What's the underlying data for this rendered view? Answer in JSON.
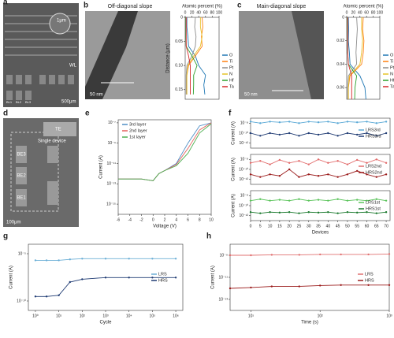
{
  "panels": {
    "a": {
      "label": "a",
      "texts": [
        "1μm",
        "WL",
        "BL1",
        "BL2",
        "BL3",
        "500μm"
      ]
    },
    "b": {
      "label": "b",
      "title": "Off-diagonal slope",
      "scale": "50 nm"
    },
    "c": {
      "label": "c",
      "title": "Main-diagonal slope",
      "scale": "50 nm"
    },
    "d": {
      "label": "d",
      "texts": [
        "TE",
        "Single device",
        "BE3",
        "BE2",
        "BE1",
        "100μm"
      ]
    },
    "e": {
      "label": "e"
    },
    "f": {
      "label": "f"
    },
    "g": {
      "label": "g"
    },
    "h": {
      "label": "h"
    }
  },
  "chart_data": [
    {
      "type": "line",
      "orientation": "vertical",
      "xlabel": "Atomic percent (%)",
      "ylabel": "Distance (μm)",
      "xlim": [
        0,
        100
      ],
      "xticks": [
        0,
        20,
        40,
        60,
        80,
        100
      ],
      "ylim": [
        0,
        0.17
      ],
      "y_inverted": true,
      "yticks": [
        0,
        0.05,
        {
          "value": 0.1,
          "label": "0.10"
        },
        0.15
      ],
      "legend": "right",
      "y": [
        0,
        0.02,
        0.04,
        0.06,
        0.08,
        0.1,
        0.12,
        0.14,
        0.16
      ],
      "series": [
        {
          "name": "O",
          "color": "#1f77b4",
          "values": [
            5,
            5,
            8,
            10,
            30,
            40,
            60,
            55,
            58
          ]
        },
        {
          "name": "Ti",
          "color": "#ff7f0e",
          "values": [
            50,
            52,
            48,
            50,
            30,
            10,
            5,
            4,
            5
          ]
        },
        {
          "name": "Pt",
          "color": "#8c8c8c",
          "values": [
            30,
            28,
            32,
            30,
            20,
            5,
            3,
            3,
            3
          ]
        },
        {
          "name": "N",
          "color": "#e6c229",
          "values": [
            45,
            45,
            50,
            45,
            25,
            8,
            5,
            5,
            5
          ]
        },
        {
          "name": "Hf",
          "color": "#2ca02c",
          "values": [
            2,
            2,
            2,
            3,
            20,
            35,
            25,
            25,
            24
          ]
        },
        {
          "name": "Ta",
          "color": "#d62728",
          "values": [
            3,
            3,
            3,
            3,
            10,
            15,
            15,
            15,
            15
          ]
        }
      ]
    },
    {
      "type": "line",
      "orientation": "vertical",
      "xlabel": "Atomic percent (%)",
      "ylabel": "",
      "xlim": [
        0,
        100
      ],
      "xticks": [
        0,
        20,
        40,
        60,
        80,
        100
      ],
      "ylim": [
        0,
        0.07
      ],
      "y_inverted": true,
      "yticks": [
        0,
        0.02,
        0.04,
        0.06
      ],
      "legend": "right",
      "y": [
        0,
        0.01,
        0.02,
        0.03,
        0.04,
        0.05,
        0.06,
        0.07
      ],
      "series": [
        {
          "name": "O",
          "color": "#1f77b4",
          "values": [
            5,
            6,
            5,
            8,
            10,
            40,
            55,
            58
          ]
        },
        {
          "name": "Ti",
          "color": "#ff7f0e",
          "values": [
            50,
            48,
            52,
            50,
            45,
            10,
            5,
            5
          ]
        },
        {
          "name": "Pt",
          "color": "#8c8c8c",
          "values": [
            30,
            32,
            30,
            28,
            30,
            5,
            3,
            3
          ]
        },
        {
          "name": "N",
          "color": "#e6c229",
          "values": [
            45,
            45,
            48,
            45,
            40,
            8,
            5,
            5
          ]
        },
        {
          "name": "Hf",
          "color": "#2ca02c",
          "values": [
            2,
            2,
            3,
            3,
            5,
            30,
            25,
            24
          ]
        },
        {
          "name": "Ta",
          "color": "#d62728",
          "values": [
            3,
            3,
            3,
            3,
            5,
            15,
            15,
            15
          ]
        }
      ]
    },
    {
      "type": "line",
      "xlabel": "Voltage (V)",
      "ylabel": "Current (A)",
      "xlim": [
        -6,
        10
      ],
      "xticks": [
        -6,
        -4,
        -2,
        0,
        2,
        4,
        6,
        8,
        10
      ],
      "ylog": true,
      "ylim": [
        1e-16,
        2e-07
      ],
      "yticks": [
        {
          "value": 1e-07,
          "label": "10⁻⁷"
        },
        {
          "value": 1e-09,
          "label": "10⁻⁹"
        },
        {
          "value": 1e-11,
          "label": "10⁻¹¹"
        },
        {
          "value": 1e-13,
          "label": "10⁻¹³"
        },
        {
          "value": 1e-15,
          "label": "10⁻¹⁵"
        }
      ],
      "legend": "top-left",
      "x": [
        -6,
        -4,
        -2,
        0,
        1,
        2,
        4,
        6,
        8,
        10
      ],
      "series": [
        {
          "name": "3rd layer",
          "color": "#4f8fc6",
          "values": [
            3e-13,
            3e-13,
            3e-13,
            2e-13,
            1e-12,
            2e-12,
            1e-11,
            1e-09,
            5e-08,
            1e-07
          ]
        },
        {
          "name": "2nd layer",
          "color": "#e4605c",
          "values": [
            3e-13,
            3e-13,
            3e-13,
            2e-13,
            1e-12,
            2e-12,
            8e-12,
            3e-10,
            2e-08,
            1e-07
          ]
        },
        {
          "name": "1st layer",
          "color": "#4caf50",
          "values": [
            3e-13,
            3e-13,
            3e-13,
            2e-13,
            1e-12,
            2e-12,
            6e-12,
            1e-10,
            1e-08,
            8e-08
          ]
        }
      ]
    },
    {
      "type": "line",
      "markers": true,
      "xlabel": "",
      "ylabel": "Current (A)",
      "xlim": [
        0,
        72
      ],
      "xticks": [],
      "ylog": true,
      "ylim": [
        1e-13,
        1e-07
      ],
      "yticks": [
        {
          "value": 1e-08,
          "label": "10⁻⁸"
        },
        {
          "value": 1e-10,
          "label": "10⁻¹⁰"
        },
        {
          "value": 1e-12,
          "label": "10⁻¹²"
        }
      ],
      "legend": "right",
      "x": [
        0,
        5,
        10,
        15,
        20,
        25,
        30,
        35,
        40,
        45,
        50,
        55,
        60,
        65,
        70
      ],
      "series": [
        {
          "name": "LRS3rd",
          "color": "#5aa9d6",
          "values": [
            2e-08,
            1e-08,
            2e-08,
            1.5e-08,
            2e-08,
            1e-08,
            2e-08,
            1.5e-08,
            2e-08,
            1e-08,
            2e-08,
            1.5e-08,
            2e-08,
            1e-08,
            2e-08
          ]
        },
        {
          "name": "HRS3rd",
          "color": "#1f3b73",
          "values": [
            1e-10,
            3e-11,
            1e-10,
            5e-11,
            1e-10,
            3e-11,
            1e-10,
            5e-11,
            1e-10,
            3e-11,
            1e-10,
            5e-11,
            1e-10,
            3e-11,
            1e-10
          ]
        }
      ]
    },
    {
      "type": "line",
      "markers": true,
      "xlabel": "",
      "ylabel": "Current (A)",
      "xlim": [
        0,
        72
      ],
      "xticks": [],
      "ylog": true,
      "ylim": [
        1e-13,
        1e-07
      ],
      "yticks": [
        {
          "value": 1e-08,
          "label": "10⁻⁸"
        },
        {
          "value": 1e-10,
          "label": "10⁻¹⁰"
        },
        {
          "value": 1e-12,
          "label": "10⁻¹²"
        }
      ],
      "legend": "right",
      "x": [
        0,
        5,
        10,
        15,
        20,
        25,
        30,
        35,
        40,
        45,
        50,
        55,
        60,
        65,
        70
      ],
      "series": [
        {
          "name": "LRS2nd",
          "color": "#e26c6c",
          "values": [
            2e-09,
            5e-09,
            1e-09,
            8e-09,
            2e-09,
            5e-09,
            1e-09,
            1e-08,
            2e-09,
            5e-09,
            1e-09,
            8e-09,
            2e-09,
            1e-08,
            2e-09
          ]
        },
        {
          "name": "HRS2nd",
          "color": "#9b1c1c",
          "values": [
            1e-11,
            3e-12,
            1e-11,
            5e-12,
            1e-10,
            3e-12,
            1e-11,
            5e-12,
            1e-11,
            3e-12,
            1e-11,
            5e-11,
            1e-11,
            3e-12,
            1e-11
          ]
        }
      ]
    },
    {
      "type": "line",
      "markers": true,
      "xlabel": "Devices",
      "ylabel": "Current (A)",
      "xlim": [
        0,
        72
      ],
      "xticks": [
        0,
        5,
        10,
        15,
        20,
        25,
        30,
        35,
        40,
        45,
        50,
        55,
        60,
        65,
        70
      ],
      "ylog": true,
      "ylim": [
        1e-13,
        1e-07
      ],
      "yticks": [
        {
          "value": 1e-08,
          "label": "10⁻⁸"
        },
        {
          "value": 1e-10,
          "label": "10⁻¹⁰"
        },
        {
          "value": 1e-12,
          "label": "10⁻¹²"
        }
      ],
      "legend": "right",
      "x": [
        0,
        5,
        10,
        15,
        20,
        25,
        30,
        35,
        40,
        45,
        50,
        55,
        60,
        65,
        70
      ],
      "series": [
        {
          "name": "LRS1st",
          "color": "#5cc45c",
          "values": [
            1e-09,
            2e-09,
            1e-09,
            1.5e-09,
            1e-09,
            2e-09,
            1e-09,
            1.5e-09,
            1e-09,
            2e-09,
            1e-09,
            1.5e-09,
            1e-09,
            2e-09,
            1e-09
          ]
        },
        {
          "name": "HRS1st",
          "color": "#1b7a2e",
          "values": [
            5e-12,
            3e-12,
            5e-12,
            4e-12,
            5e-12,
            3e-12,
            5e-12,
            4e-12,
            5e-12,
            3e-12,
            5e-12,
            4e-12,
            5e-12,
            3e-12,
            5e-12
          ]
        }
      ]
    },
    {
      "type": "line",
      "markers": true,
      "xlabel": "Cycle",
      "ylabel": "Current (A)",
      "xlog": true,
      "xlim": [
        0.5,
        2000000.0
      ],
      "xticks": [
        {
          "value": 1,
          "label": "10⁰"
        },
        {
          "value": 10,
          "label": "10¹"
        },
        {
          "value": 100,
          "label": "10²"
        },
        {
          "value": 1000,
          "label": "10³"
        },
        {
          "value": 10000,
          "label": "10⁴"
        },
        {
          "value": 100000,
          "label": "10⁵"
        },
        {
          "value": 1000000,
          "label": "10⁶"
        }
      ],
      "ylog": true,
      "ylim": [
        1e-11,
        0.0001
      ],
      "yticks": [
        {
          "value": 1e-05,
          "label": "10⁻⁵"
        },
        {
          "value": 1e-10,
          "label": "10⁻¹⁰"
        }
      ],
      "legend": "right",
      "x": [
        1,
        3,
        10,
        30,
        100,
        1000,
        10000,
        100000,
        1000000
      ],
      "series": [
        {
          "name": "LRS",
          "color": "#6aaed6",
          "values": [
            2e-06,
            2e-06,
            2e-06,
            2.5e-06,
            3e-06,
            3e-06,
            3e-06,
            3e-06,
            3e-06
          ]
        },
        {
          "name": "HRS",
          "color": "#1f3b73",
          "values": [
            3e-10,
            3e-10,
            4e-10,
            1e-08,
            2e-08,
            3e-08,
            3e-08,
            3e-08,
            3e-08
          ]
        }
      ]
    },
    {
      "type": "line",
      "markers": true,
      "xlabel": "Time (s)",
      "ylabel": "Current (A)",
      "xlog": true,
      "xlim": [
        5,
        1000
      ],
      "xticks": [
        {
          "value": 10,
          "label": "10¹"
        },
        {
          "value": 100,
          "label": "10²"
        },
        {
          "value": 1000,
          "label": "10³"
        }
      ],
      "ylog": true,
      "ylim": [
        1e-14,
        1e-08
      ],
      "yticks": [
        {
          "value": 1e-09,
          "label": "10⁻⁹"
        },
        {
          "value": 1e-11,
          "label": "10⁻¹¹"
        },
        {
          "value": 1e-13,
          "label": "10⁻¹³"
        }
      ],
      "legend": "right",
      "x": [
        5,
        10,
        20,
        50,
        100,
        200,
        500,
        1000
      ],
      "series": [
        {
          "name": "LRS",
          "color": "#e07070",
          "values": [
            1e-09,
            1e-09,
            1.1e-09,
            1.1e-09,
            1.2e-09,
            1.2e-09,
            1.2e-09,
            1.3e-09
          ]
        },
        {
          "name": "HRS",
          "color": "#9b1c1c",
          "values": [
            1e-12,
            1.2e-12,
            1.5e-12,
            1.5e-12,
            1.8e-12,
            2e-12,
            2e-12,
            2e-12
          ]
        }
      ]
    }
  ]
}
